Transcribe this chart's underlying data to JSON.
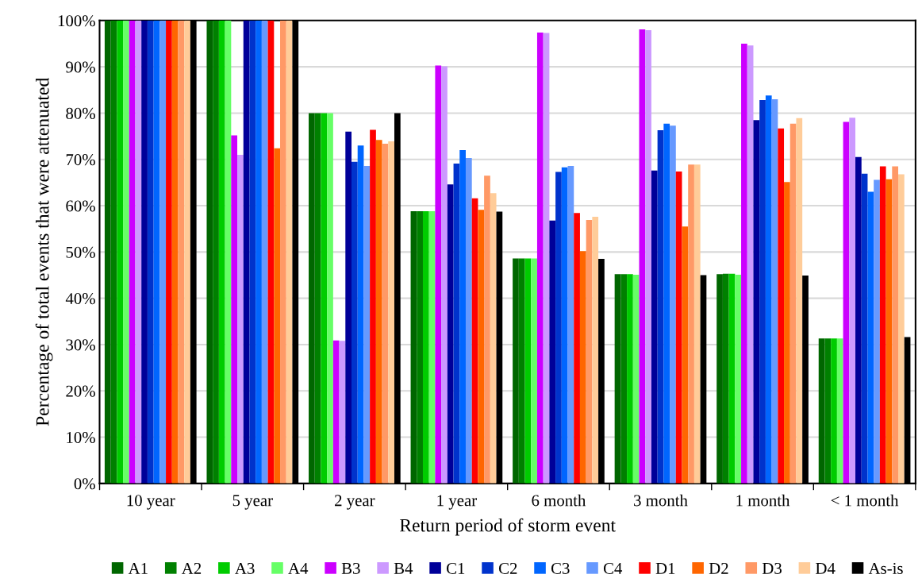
{
  "chart_data": {
    "type": "bar",
    "xlabel": "Return period of storm event",
    "ylabel": "Percentage of total events that were attenuated",
    "categories": [
      "10 year",
      "5 year",
      "2 year",
      "1 year",
      "6 month",
      "3 month",
      "1 month",
      "< 1 month"
    ],
    "series": [
      {
        "name": "A1",
        "color": "#006600",
        "values": [
          100,
          100,
          80,
          58.8,
          48.6,
          45.2,
          45.2,
          31.3
        ]
      },
      {
        "name": "A2",
        "color": "#008000",
        "values": [
          100,
          100,
          80,
          58.8,
          48.6,
          45.2,
          45.3,
          31.3
        ]
      },
      {
        "name": "A3",
        "color": "#00cc00",
        "values": [
          100,
          100,
          80,
          58.8,
          48.6,
          45.2,
          45.3,
          31.3
        ]
      },
      {
        "name": "A4",
        "color": "#66ff66",
        "values": [
          100,
          100,
          80,
          58.8,
          48.6,
          45.1,
          45.1,
          31.3
        ]
      },
      {
        "name": "B3",
        "color": "#cc00ff",
        "values": [
          100,
          75.2,
          30.9,
          90.3,
          97.4,
          98.1,
          95.0,
          78.1
        ]
      },
      {
        "name": "B4",
        "color": "#cc99ff",
        "values": [
          100,
          71.0,
          30.8,
          90.1,
          97.3,
          97.9,
          94.6,
          79.0
        ]
      },
      {
        "name": "C1",
        "color": "#000099",
        "values": [
          100,
          100,
          76.0,
          64.6,
          56.8,
          67.6,
          78.5,
          70.5
        ]
      },
      {
        "name": "C2",
        "color": "#0033cc",
        "values": [
          100,
          100,
          69.5,
          69.1,
          67.3,
          76.3,
          82.8,
          66.9
        ]
      },
      {
        "name": "C3",
        "color": "#0066ff",
        "values": [
          100,
          100,
          73.0,
          72.0,
          68.3,
          77.7,
          83.8,
          63.0
        ]
      },
      {
        "name": "C4",
        "color": "#6699ff",
        "values": [
          100,
          100,
          68.6,
          70.3,
          68.6,
          77.3,
          83.0,
          65.6
        ]
      },
      {
        "name": "D1",
        "color": "#ff0000",
        "values": [
          100,
          100,
          76.4,
          61.6,
          58.4,
          67.4,
          76.7,
          68.5
        ]
      },
      {
        "name": "D2",
        "color": "#ff6600",
        "values": [
          100,
          72.4,
          74.2,
          59.1,
          50.2,
          55.5,
          65.1,
          65.7
        ]
      },
      {
        "name": "D3",
        "color": "#ff9966",
        "values": [
          100,
          100,
          73.4,
          66.5,
          56.9,
          68.9,
          77.7,
          68.5
        ]
      },
      {
        "name": "D4",
        "color": "#ffcc99",
        "values": [
          100,
          100,
          73.9,
          62.7,
          57.6,
          68.9,
          78.9,
          66.8
        ]
      },
      {
        "name": "As-is",
        "color": "#000000",
        "values": [
          100,
          100,
          80,
          58.7,
          48.5,
          45.0,
          44.9,
          31.6
        ]
      }
    ],
    "ylim": [
      0,
      100
    ],
    "yticks": [
      {
        "value": 0,
        "label": "0%"
      },
      {
        "value": 10,
        "label": "10%"
      },
      {
        "value": 20,
        "label": "20%"
      },
      {
        "value": 30,
        "label": "30%"
      },
      {
        "value": 40,
        "label": "40%"
      },
      {
        "value": 50,
        "label": "50%"
      },
      {
        "value": 60,
        "label": "60%"
      },
      {
        "value": 70,
        "label": "70%"
      },
      {
        "value": 80,
        "label": "80%"
      },
      {
        "value": 90,
        "label": "90%"
      },
      {
        "value": 100,
        "label": "100%"
      }
    ],
    "grid": "y",
    "legend": "bottom"
  }
}
